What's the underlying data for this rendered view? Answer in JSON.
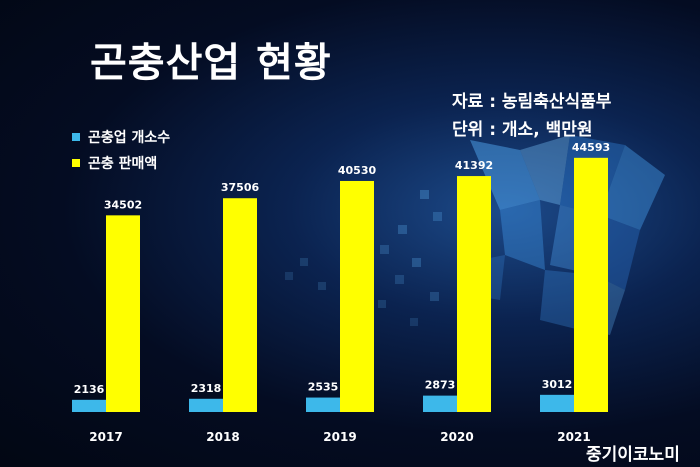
{
  "title": "곤충산업 현황",
  "source": {
    "line1": "자료 : 농림축산식품부",
    "line2": "단위 : 개소, 백만원"
  },
  "watermark": "중기이코노미",
  "colors": {
    "business_count": "#3db8ea",
    "sales": "#ffff00"
  },
  "chart_data": {
    "type": "bar",
    "title": "곤충산업 현황",
    "categories": [
      "2017",
      "2018",
      "2019",
      "2020",
      "2021"
    ],
    "series": [
      {
        "name": "곤충업 개소수",
        "values": [
          2136,
          2318,
          2535,
          2873,
          3012
        ]
      },
      {
        "name": "곤충 판매액",
        "values": [
          34502,
          37506,
          40530,
          41392,
          44593
        ]
      }
    ],
    "ylim": [
      0,
      50000
    ],
    "grid": false,
    "legend": "top-left",
    "data_labels": true
  }
}
